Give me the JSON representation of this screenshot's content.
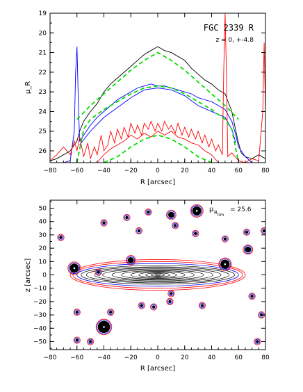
{
  "chart_data": [
    {
      "type": "line",
      "title": "FGC 2339 R",
      "subtitle": "z = 0, +-4.8",
      "xlabel": "R [arcsec]",
      "ylabel": "μ_R",
      "xlim": [
        -80,
        80
      ],
      "ylim": [
        26.6,
        19
      ],
      "y_inverted": true,
      "xticks": [
        "−80",
        "−60",
        "−40",
        "−20",
        "0",
        "20",
        "40",
        "60",
        "80"
      ],
      "yticks": [
        "19",
        "20",
        "21",
        "22",
        "23",
        "24",
        "25",
        "26"
      ],
      "series": [
        {
          "color": "#000000",
          "x": [
            -80,
            -75,
            -70,
            -65,
            -62,
            -60,
            -58,
            -55,
            -50,
            -45,
            -40,
            -35,
            -30,
            -25,
            -20,
            -15,
            -10,
            -5,
            0,
            5,
            10,
            15,
            20,
            25,
            30,
            35,
            40,
            45,
            50,
            55,
            58,
            60,
            62,
            65,
            70,
            75,
            80
          ],
          "y": [
            26.5,
            26.4,
            26.2,
            26.0,
            25.7,
            25.5,
            25.0,
            24.5,
            24.0,
            23.6,
            23.0,
            22.6,
            22.3,
            22.0,
            21.7,
            21.4,
            21.1,
            20.9,
            20.7,
            20.9,
            21.0,
            21.2,
            21.4,
            21.8,
            22.1,
            22.4,
            22.6,
            22.9,
            23.1,
            24.0,
            25.0,
            25.6,
            26.1,
            26.3,
            26.4,
            26.2,
            26.4
          ]
        },
        {
          "color": "#0000ff",
          "x": [
            -80,
            -70,
            -65,
            -62,
            -61,
            -60,
            -59,
            -58,
            -55,
            -50,
            -45,
            -40,
            -35,
            -30,
            -25,
            -20,
            -15,
            -10,
            -5,
            0,
            5,
            10,
            15,
            20,
            25,
            30,
            35,
            40,
            45,
            50,
            55,
            58,
            60,
            65,
            70,
            80
          ],
          "y": [
            26.6,
            26.6,
            26.5,
            25.0,
            22.0,
            20.7,
            23.5,
            25.5,
            25.2,
            24.7,
            24.3,
            24.0,
            23.7,
            23.4,
            23.2,
            23.0,
            22.8,
            22.7,
            22.6,
            22.7,
            22.7,
            22.8,
            22.9,
            23.0,
            23.1,
            23.3,
            23.4,
            23.5,
            23.7,
            23.9,
            24.5,
            25.2,
            25.8,
            26.3,
            26.6,
            26.6
          ]
        },
        {
          "color": "#0000ff",
          "x": [
            -58,
            -50,
            -40,
            -30,
            -20,
            -10,
            0,
            10,
            20,
            30,
            40,
            50,
            55,
            58
          ],
          "y": [
            25.7,
            25.0,
            24.3,
            23.8,
            23.3,
            22.9,
            22.8,
            22.9,
            23.2,
            23.7,
            24.0,
            24.3,
            24.9,
            25.6
          ]
        },
        {
          "color": "#ff0000",
          "x": [
            -80,
            -75,
            -70,
            -65,
            -62,
            -60,
            -58,
            -55,
            -52,
            -50,
            -47,
            -45,
            -42,
            -40,
            -37,
            -35,
            -32,
            -30,
            -27,
            -25,
            -22,
            -20,
            -17,
            -15,
            -12,
            -10,
            -7,
            -5,
            -2,
            0,
            3,
            5,
            8,
            10,
            13,
            15,
            18,
            20,
            23,
            25,
            28,
            30,
            33,
            35,
            38,
            40,
            43,
            45,
            48,
            49,
            50,
            51,
            52,
            55,
            60,
            65,
            70,
            75,
            78,
            79,
            80
          ],
          "y": [
            26.5,
            26.2,
            25.8,
            26.2,
            25.5,
            26.0,
            25.3,
            26.3,
            25.6,
            26.4,
            25.8,
            26.2,
            25.2,
            26.0,
            25.7,
            25.0,
            25.6,
            24.9,
            25.4,
            24.8,
            25.3,
            24.6,
            25.1,
            24.7,
            25.2,
            24.6,
            24.9,
            24.5,
            25.0,
            24.6,
            25.0,
            24.5,
            24.9,
            24.7,
            25.1,
            24.6,
            25.2,
            24.8,
            25.3,
            24.9,
            25.4,
            25.0,
            25.6,
            25.2,
            25.8,
            25.4,
            26.0,
            25.7,
            26.2,
            22.0,
            19.0,
            22.0,
            26.3,
            26.1,
            26.5,
            26.6,
            26.4,
            26.5,
            24.0,
            20.5,
            24.0
          ]
        },
        {
          "color": "#ff0000",
          "x": [
            -45,
            -40,
            -35,
            -30,
            -25,
            -20,
            -15,
            -10,
            -5,
            0,
            5,
            10,
            15,
            20,
            25,
            30,
            35,
            40,
            45
          ],
          "y": [
            26.6,
            26.2,
            25.9,
            25.7,
            25.5,
            25.2,
            25.4,
            25.1,
            25.3,
            25.0,
            25.2,
            25.0,
            25.3,
            25.4,
            25.6,
            25.7,
            26.0,
            26.2,
            26.6
          ]
        },
        {
          "color": "#00dd00",
          "dashed": true,
          "x": [
            -60,
            -50,
            -40,
            -30,
            -20,
            -10,
            0,
            10,
            20,
            30,
            40,
            50,
            60
          ],
          "y": [
            24.4,
            23.7,
            23.1,
            22.5,
            21.9,
            21.4,
            21.0,
            21.4,
            21.9,
            22.5,
            23.1,
            23.7,
            24.4
          ]
        },
        {
          "color": "#00dd00",
          "dashed": true,
          "x": [
            -60,
            -55,
            -50,
            -40,
            -30,
            -20,
            -10,
            0,
            10,
            20,
            30,
            40,
            50,
            55,
            60
          ],
          "y": [
            26.6,
            24.9,
            24.4,
            23.9,
            23.5,
            23.1,
            22.8,
            22.7,
            22.8,
            23.1,
            23.5,
            23.9,
            24.4,
            24.9,
            26.6
          ]
        },
        {
          "color": "#00dd00",
          "dashed": true,
          "x": [
            -40,
            -30,
            -20,
            -10,
            0,
            10,
            20,
            30,
            40
          ],
          "y": [
            26.6,
            26.3,
            25.8,
            25.4,
            25.2,
            25.4,
            25.8,
            26.3,
            26.6
          ]
        }
      ]
    },
    {
      "type": "contour",
      "title": "",
      "xlabel": "R [arcsec]",
      "ylabel": "z [arcsec]",
      "xlim": [
        -80,
        80
      ],
      "ylim": [
        -56,
        56
      ],
      "xticks": [
        "−80",
        "−60",
        "−40",
        "−20",
        "0",
        "20",
        "40",
        "60",
        "80"
      ],
      "yticks": [
        "50",
        "40",
        "30",
        "20",
        "10",
        "0",
        "−10",
        "−20",
        "−30",
        "−40",
        "−50"
      ],
      "annotation": {
        "label_main": "μ",
        "label_sub": "R",
        "label_subsub": "lim",
        "equals": "= 25.6"
      },
      "disk": {
        "contours": [
          {
            "a": 2,
            "b": 0.6
          },
          {
            "a": 5,
            "b": 1.0
          },
          {
            "a": 9,
            "b": 1.5
          },
          {
            "a": 14,
            "b": 2.0
          },
          {
            "a": 20,
            "b": 2.6
          },
          {
            "a": 27,
            "b": 3.2
          },
          {
            "a": 34,
            "b": 3.8
          },
          {
            "a": 41,
            "b": 4.5
          },
          {
            "a": 47,
            "b": 5.2
          },
          {
            "a": 53,
            "b": 6.0
          },
          {
            "a": 57,
            "b": 7.0
          }
        ],
        "outer_blue": {
          "a": 60,
          "b": 8.5
        },
        "outer_red": [
          {
            "a": 63,
            "b": 10
          },
          {
            "a": 65,
            "b": 11.5
          }
        ]
      },
      "stars": [
        {
          "x": -62,
          "y": 5,
          "r": 3
        },
        {
          "x": 50,
          "y": 8,
          "r": 3
        },
        {
          "x": 29,
          "y": 48,
          "r": 3
        },
        {
          "x": -40,
          "y": -39,
          "r": 4
        },
        {
          "x": 10,
          "y": 45,
          "r": 2
        },
        {
          "x": -7,
          "y": 47,
          "r": 1
        },
        {
          "x": -23,
          "y": 43,
          "r": 1
        },
        {
          "x": -40,
          "y": 39,
          "r": 1
        },
        {
          "x": -20,
          "y": 11,
          "r": 2
        },
        {
          "x": -44,
          "y": 2,
          "r": 1
        },
        {
          "x": 67,
          "y": 19,
          "r": 2
        },
        {
          "x": 79,
          "y": 33,
          "r": 1
        },
        {
          "x": 66,
          "y": 32,
          "r": 1
        },
        {
          "x": -14,
          "y": 33,
          "r": 1
        },
        {
          "x": 13,
          "y": 37,
          "r": 1
        },
        {
          "x": 28,
          "y": 31,
          "r": 1
        },
        {
          "x": 50,
          "y": 27,
          "r": 1
        },
        {
          "x": -12,
          "y": -23,
          "r": 1
        },
        {
          "x": 9,
          "y": -20,
          "r": 1
        },
        {
          "x": -3,
          "y": -24,
          "r": 1
        },
        {
          "x": 33,
          "y": -23,
          "r": 1
        },
        {
          "x": -35,
          "y": -28,
          "r": 1
        },
        {
          "x": -60,
          "y": -28,
          "r": 1
        },
        {
          "x": 10,
          "y": -14,
          "r": 1
        },
        {
          "x": -50,
          "y": -50,
          "r": 1
        },
        {
          "x": -60,
          "y": -49,
          "r": 1
        },
        {
          "x": 70,
          "y": -16,
          "r": 1
        },
        {
          "x": 77,
          "y": -30,
          "r": 1
        },
        {
          "x": 74,
          "y": -50,
          "r": 1
        },
        {
          "x": -72,
          "y": 28,
          "r": 1
        }
      ]
    }
  ]
}
